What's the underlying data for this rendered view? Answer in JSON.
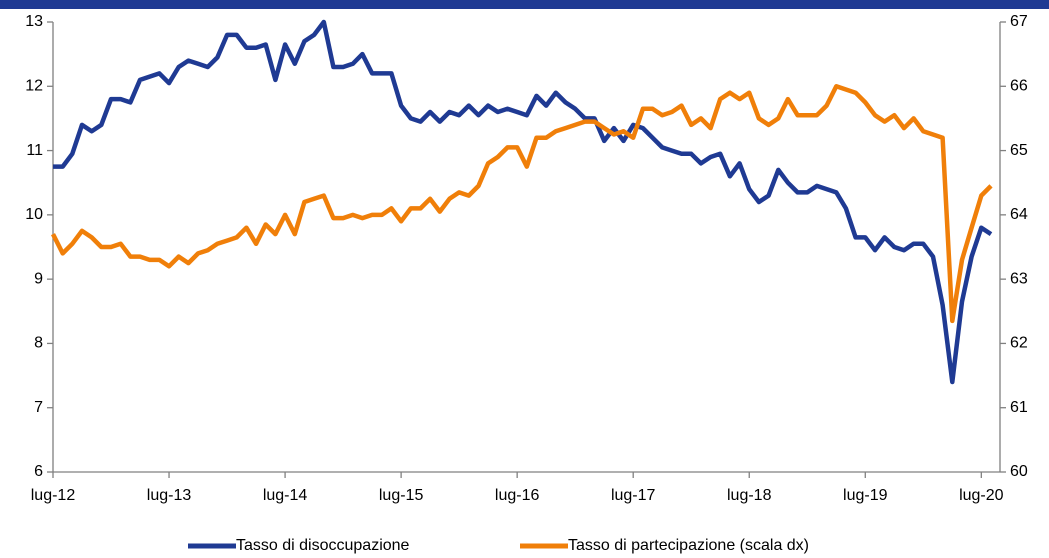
{
  "chart_data": {
    "type": "line",
    "categories": [
      "lug-12",
      null,
      null,
      null,
      null,
      null,
      null,
      null,
      null,
      null,
      null,
      null,
      "lug-13",
      null,
      null,
      null,
      null,
      null,
      null,
      null,
      null,
      null,
      null,
      null,
      "lug-14",
      null,
      null,
      null,
      null,
      null,
      null,
      null,
      null,
      null,
      null,
      null,
      "lug-15",
      null,
      null,
      null,
      null,
      null,
      null,
      null,
      null,
      null,
      null,
      null,
      "lug-16",
      null,
      null,
      null,
      null,
      null,
      null,
      null,
      null,
      null,
      null,
      null,
      "lug-17",
      null,
      null,
      null,
      null,
      null,
      null,
      null,
      null,
      null,
      null,
      null,
      "lug-18",
      null,
      null,
      null,
      null,
      null,
      null,
      null,
      null,
      null,
      null,
      null,
      "lug-19",
      null,
      null,
      null,
      null,
      null,
      null,
      null,
      null,
      null,
      null,
      null,
      "lug-20",
      null
    ],
    "series": [
      {
        "name": "Tasso di disoccupazione",
        "color": "#1f3a93",
        "axis": "y",
        "values": [
          10.75,
          10.75,
          10.95,
          11.4,
          11.3,
          11.4,
          11.8,
          11.8,
          11.75,
          12.1,
          12.15,
          12.2,
          12.05,
          12.3,
          12.4,
          12.35,
          12.3,
          12.45,
          12.8,
          12.8,
          12.6,
          12.6,
          12.65,
          12.1,
          12.65,
          12.35,
          12.7,
          12.8,
          13.0,
          12.3,
          12.3,
          12.35,
          12.5,
          12.2,
          12.2,
          12.2,
          11.7,
          11.5,
          11.45,
          11.6,
          11.45,
          11.6,
          11.55,
          11.7,
          11.55,
          11.7,
          11.6,
          11.65,
          11.6,
          11.55,
          11.85,
          11.7,
          11.9,
          11.75,
          11.65,
          11.5,
          11.5,
          11.15,
          11.35,
          11.15,
          11.4,
          11.35,
          11.2,
          11.05,
          11.0,
          10.95,
          10.95,
          10.8,
          10.9,
          10.95,
          10.6,
          10.8,
          10.4,
          10.2,
          10.3,
          10.7,
          10.5,
          10.35,
          10.35,
          10.45,
          10.4,
          10.35,
          10.1,
          9.65,
          9.65,
          9.45,
          9.65,
          9.5,
          9.45,
          9.55,
          9.55,
          9.35,
          8.6,
          7.4,
          8.65,
          9.35,
          9.8,
          9.7
        ]
      },
      {
        "name": "Tasso di partecipazione (scala dx)",
        "color": "#f07f09",
        "axis": "y2",
        "values": [
          63.7,
          63.4,
          63.55,
          63.75,
          63.65,
          63.5,
          63.5,
          63.55,
          63.35,
          63.35,
          63.3,
          63.3,
          63.2,
          63.35,
          63.25,
          63.4,
          63.45,
          63.55,
          63.6,
          63.65,
          63.8,
          63.55,
          63.85,
          63.7,
          64.0,
          63.7,
          64.2,
          64.25,
          64.3,
          63.95,
          63.95,
          64.0,
          63.95,
          64.0,
          64.0,
          64.1,
          63.9,
          64.1,
          64.1,
          64.25,
          64.05,
          64.25,
          64.35,
          64.3,
          64.45,
          64.8,
          64.9,
          65.05,
          65.05,
          64.75,
          65.2,
          65.2,
          65.3,
          65.35,
          65.4,
          65.45,
          65.45,
          65.35,
          65.25,
          65.3,
          65.2,
          65.65,
          65.65,
          65.55,
          65.6,
          65.7,
          65.4,
          65.5,
          65.35,
          65.8,
          65.9,
          65.8,
          65.9,
          65.5,
          65.4,
          65.5,
          65.8,
          65.55,
          65.55,
          65.55,
          65.7,
          66.0,
          65.95,
          65.9,
          65.75,
          65.55,
          65.45,
          65.55,
          65.35,
          65.5,
          65.3,
          65.25,
          65.2,
          62.35,
          63.3,
          63.8,
          64.3,
          64.45
        ]
      }
    ],
    "ylim": [
      6,
      13
    ],
    "yticks": [
      6,
      7,
      8,
      9,
      10,
      11,
      12,
      13
    ],
    "y2lim": [
      60,
      67
    ],
    "y2ticks": [
      60,
      61,
      62,
      63,
      64,
      65,
      66,
      67
    ],
    "legend": "bottom"
  }
}
